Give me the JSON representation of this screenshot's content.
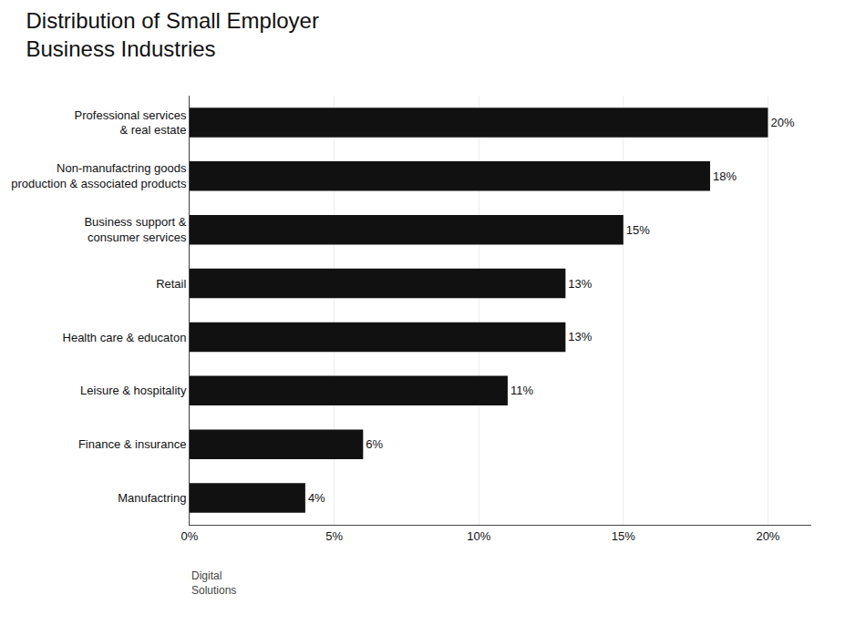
{
  "chart_data": {
    "type": "bar",
    "orientation": "horizontal",
    "title": "Distribution of Small Employer\nBusiness Industries",
    "categories": [
      "Professional services\n& real estate",
      "Non-manufactring goods\nproduction & associated products",
      "Business support &\nconsumer services",
      "Retail",
      "Health care & educaton",
      "Leisure & hospitality",
      "Finance & insurance",
      "Manufactring"
    ],
    "values": [
      20,
      18,
      15,
      13,
      13,
      11,
      6,
      4
    ],
    "value_labels": [
      "20%",
      "18%",
      "15%",
      "13%",
      "13%",
      "11%",
      "6%",
      "4%"
    ],
    "data_labels": true,
    "color": "#111111",
    "xlim": [
      0,
      21.5
    ],
    "xticks": [
      {
        "value": 0,
        "label": "0%"
      },
      {
        "value": 5,
        "label": "5%"
      },
      {
        "value": 10,
        "label": "10%"
      },
      {
        "value": 15,
        "label": "15%"
      },
      {
        "value": 20,
        "label": "20%"
      }
    ],
    "grid": true,
    "annotations": [
      "Digital\nSolutions"
    ]
  }
}
